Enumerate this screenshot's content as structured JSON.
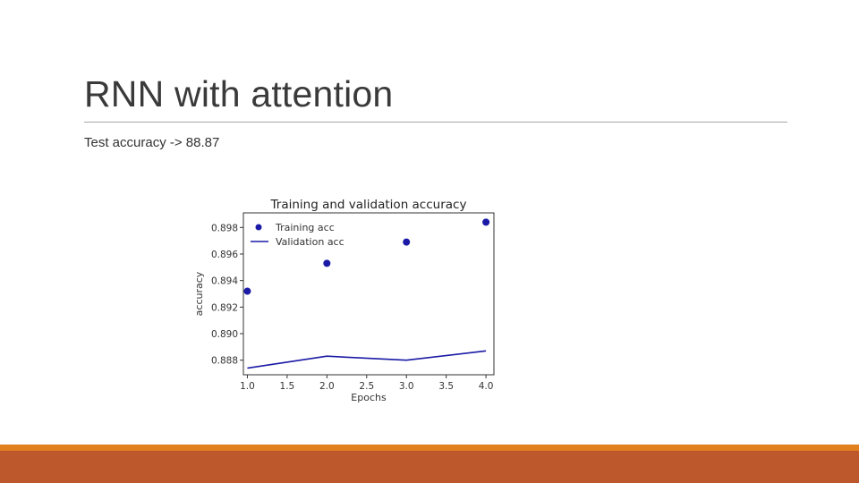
{
  "slide": {
    "title": "RNN with attention",
    "body_text": "Test accuracy -> 88.87"
  },
  "colors": {
    "footer_top": "#e0801e",
    "footer_main": "#bd582c",
    "series": "#1a1aa6"
  },
  "chart_data": {
    "type": "scatter",
    "title": "Training and validation accuracy",
    "xlabel": "Epochs",
    "ylabel": "accuracy",
    "xlim": [
      0.95,
      4.1
    ],
    "ylim": [
      0.8869,
      0.8991
    ],
    "xticks": [
      1.0,
      1.5,
      2.0,
      2.5,
      3.0,
      3.5,
      4.0
    ],
    "xtick_labels": [
      "1.0",
      "1.5",
      "2.0",
      "2.5",
      "3.0",
      "3.5",
      "4.0"
    ],
    "yticks": [
      0.888,
      0.89,
      0.892,
      0.894,
      0.896,
      0.898
    ],
    "ytick_labels": [
      "0.888",
      "0.890",
      "0.892",
      "0.894",
      "0.896",
      "0.898"
    ],
    "grid": false,
    "legend": "top-left",
    "series": [
      {
        "name": "Training acc",
        "kind": "points",
        "color": "#1a1aa6",
        "x": [
          1,
          2,
          3,
          4
        ],
        "y": [
          0.8932,
          0.8953,
          0.8969,
          0.8984
        ]
      },
      {
        "name": "Validation acc",
        "kind": "line",
        "color": "#1a1aa6",
        "x": [
          1,
          2,
          3,
          4
        ],
        "y": [
          0.8874,
          0.8883,
          0.888,
          0.8887
        ]
      }
    ]
  }
}
